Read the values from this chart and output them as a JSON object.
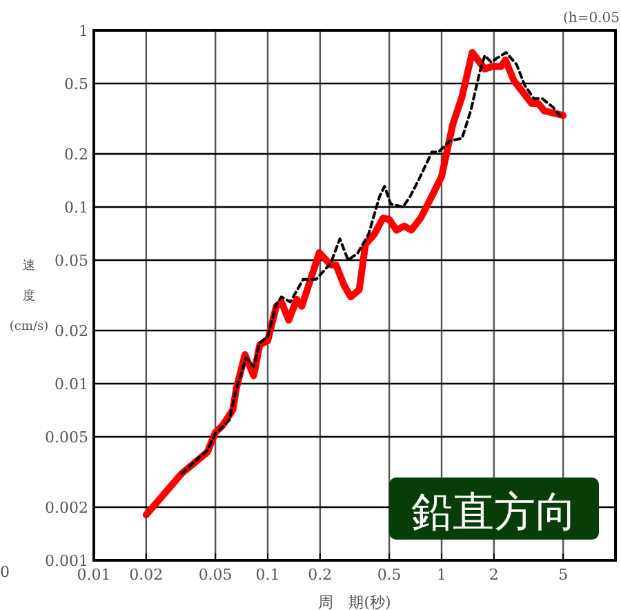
{
  "chart_data": {
    "type": "line",
    "xlabel": "周　期(秒)",
    "ylabel": "速度(cm/s)",
    "log": "xy",
    "grid": true,
    "xlim": [
      0.01,
      10
    ],
    "ylim": [
      0.001,
      1
    ],
    "xticks": [
      0.01,
      0.02,
      0.05,
      0.1,
      0.2,
      0.5,
      1,
      2,
      5
    ],
    "yticks": [
      0.001,
      0.002,
      0.005,
      0.01,
      0.02,
      0.05,
      0.1,
      0.2,
      0.5,
      1
    ],
    "annotations": [
      "(h=0.05",
      "鉛直方向",
      "0"
    ],
    "series": [
      {
        "color": "#000000",
        "line_style": "dashed",
        "x": [
          0.032,
          0.045,
          0.05,
          0.06,
          0.066,
          0.075,
          0.083,
          0.09,
          0.1,
          0.112,
          0.12,
          0.135,
          0.16,
          0.19,
          0.23,
          0.26,
          0.29,
          0.33,
          0.38,
          0.44,
          0.47,
          0.51,
          0.6,
          0.66,
          0.74,
          0.88,
          0.96,
          1.12,
          1.31,
          1.47,
          1.65,
          1.77,
          1.93,
          2.1,
          2.35,
          2.7,
          3.0,
          3.4,
          3.8,
          4.4,
          4.9
        ],
        "values": [
          0.0031,
          0.0042,
          0.0052,
          0.0062,
          0.0093,
          0.014,
          0.0125,
          0.017,
          0.0185,
          0.028,
          0.031,
          0.029,
          0.039,
          0.039,
          0.048,
          0.066,
          0.05,
          0.055,
          0.07,
          0.115,
          0.131,
          0.104,
          0.1,
          0.115,
          0.143,
          0.205,
          0.205,
          0.237,
          0.245,
          0.35,
          0.57,
          0.72,
          0.66,
          0.7,
          0.75,
          0.64,
          0.49,
          0.41,
          0.41,
          0.365,
          0.32
        ]
      },
      {
        "color": "#ff0000",
        "line_style": "solid",
        "x": [
          0.02,
          0.032,
          0.045,
          0.05,
          0.055,
          0.063,
          0.066,
          0.074,
          0.083,
          0.09,
          0.1,
          0.112,
          0.12,
          0.132,
          0.147,
          0.157,
          0.198,
          0.23,
          0.247,
          0.275,
          0.3,
          0.336,
          0.365,
          0.41,
          0.46,
          0.5,
          0.55,
          0.61,
          0.67,
          0.76,
          0.87,
          1.0,
          1.16,
          1.31,
          1.5,
          1.77,
          1.96,
          2.2,
          2.33,
          2.6,
          3.3,
          3.6,
          3.9,
          5.0
        ],
        "values": [
          0.00181,
          0.0031,
          0.0041,
          0.0053,
          0.0058,
          0.0071,
          0.0094,
          0.0146,
          0.0111,
          0.0166,
          0.0175,
          0.0274,
          0.029,
          0.0229,
          0.03,
          0.0274,
          0.0552,
          0.047,
          0.047,
          0.036,
          0.031,
          0.034,
          0.0615,
          0.07,
          0.0866,
          0.085,
          0.074,
          0.078,
          0.074,
          0.087,
          0.113,
          0.149,
          0.294,
          0.42,
          0.75,
          0.605,
          0.625,
          0.625,
          0.68,
          0.52,
          0.385,
          0.385,
          0.35,
          0.33
        ]
      }
    ]
  }
}
